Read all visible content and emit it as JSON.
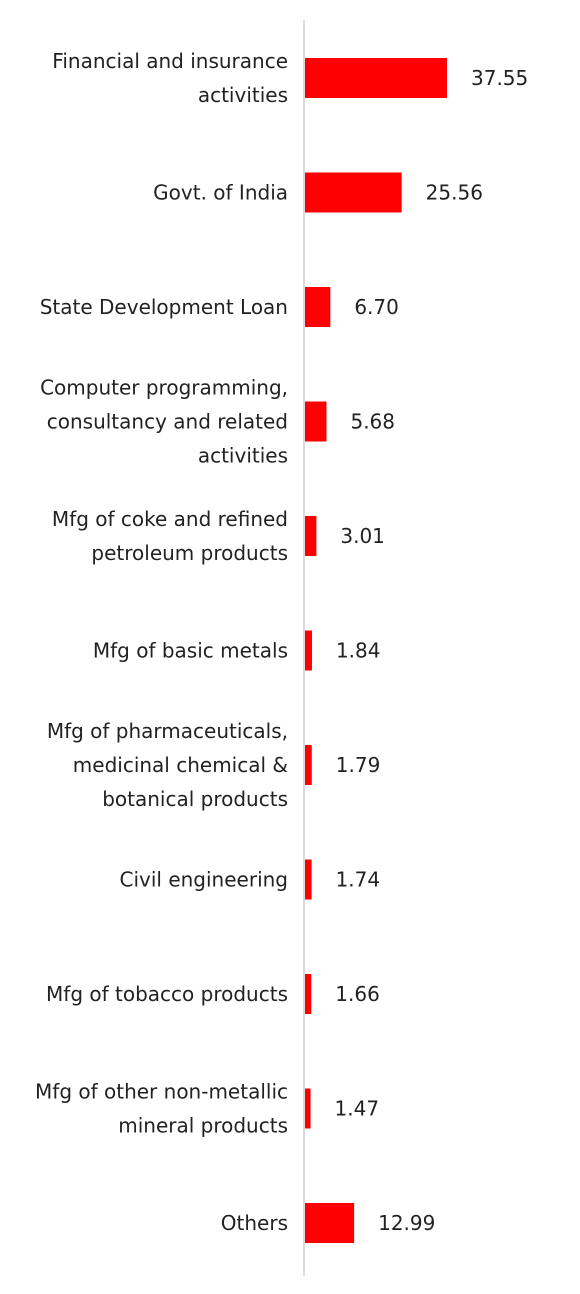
{
  "chart_data": {
    "type": "bar",
    "orientation": "horizontal",
    "title": "",
    "xlabel": "",
    "ylabel": "",
    "categories": [
      "Financial and insurance activities",
      "Govt. of India",
      "State Development Loan",
      "Computer programming, consultancy and related activities",
      "Mfg of coke and refined petroleum products",
      "Mfg of basic metals",
      "Mfg of pharmaceuticals, medicinal chemical & botanical products",
      "Civil engineering",
      "Mfg of tobacco products",
      "Mfg of other non-metallic mineral products",
      "Others"
    ],
    "category_lines": [
      [
        "Financial and insurance",
        "activities"
      ],
      [
        "Govt. of India"
      ],
      [
        "State Development Loan"
      ],
      [
        "Computer programming,",
        "consultancy and related",
        "activities"
      ],
      [
        "Mfg of coke and refined",
        "petroleum products"
      ],
      [
        "Mfg of basic metals"
      ],
      [
        "Mfg of pharmaceuticals,",
        "medicinal chemical &",
        "botanical products"
      ],
      [
        "Civil engineering"
      ],
      [
        "Mfg of tobacco products"
      ],
      [
        "Mfg of other non-metallic",
        "mineral products"
      ],
      [
        "Others"
      ]
    ],
    "values": [
      37.55,
      25.56,
      6.7,
      5.68,
      3.01,
      1.84,
      1.79,
      1.74,
      1.66,
      1.47,
      12.99
    ],
    "value_labels": [
      "37.55",
      "25.56",
      "6.70",
      "5.68",
      "3.01",
      "1.84",
      "1.79",
      "1.74",
      "1.66",
      "1.47",
      "12.99"
    ],
    "xlim": [
      0,
      37.55
    ],
    "grid": false,
    "legend": "none",
    "colors": {
      "bar": "#ff0000",
      "axis": "#d9d9d9",
      "text": "#222222"
    }
  }
}
